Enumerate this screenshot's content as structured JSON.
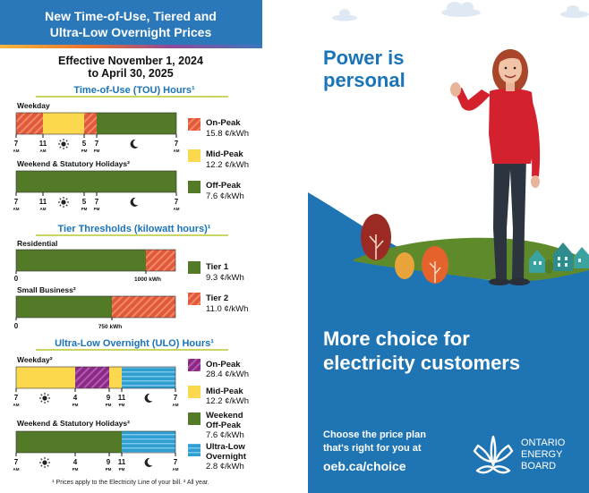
{
  "left": {
    "header_line1": "New Time-of-Use, Tiered and",
    "header_line2": "Ultra-Low Overnight Prices",
    "effective_line1": "Effective November 1, 2024",
    "effective_line2": "to April 30, 2025",
    "tou": {
      "section_title": "Time-of-Use (TOU) Hours¹",
      "weekday_label": "Weekday",
      "weekend_label": "Weekend & Statutory Holidays²",
      "weekday_ticks": [
        {
          "num": "7",
          "sub": "AM"
        },
        {
          "num": "11",
          "sub": "AM"
        },
        {
          "num": "5",
          "sub": "PM"
        },
        {
          "num": "7",
          "sub": "PM"
        },
        {
          "num": "7",
          "sub": "AM"
        }
      ],
      "legend": [
        {
          "name": "On-Peak",
          "price": "15.8 ¢/kWh",
          "color": "#e2593a"
        },
        {
          "name": "Mid-Peak",
          "price": "12.2 ¢/kWh",
          "color": "#fcd84e"
        },
        {
          "name": "Off-Peak",
          "price": "7.6 ¢/kWh",
          "color": "#537a27"
        }
      ]
    },
    "tier": {
      "section_title": "Tier Thresholds (kilowatt hours)¹",
      "residential_label": "Residential",
      "residential_zero": "0",
      "residential_threshold": "1000 kWh",
      "small_business_label": "Small Business²",
      "small_business_zero": "0",
      "small_business_threshold": "750 kWh",
      "tier1_name": "Tier 1",
      "tier1_price": "9.3 ¢/kWh",
      "tier2_name": "Tier 2",
      "tier2_price": "11.0 ¢/kWh"
    },
    "ulo": {
      "section_title": "Ultra-Low Overnight (ULO) Hours¹",
      "weekday_label": "Weekday²",
      "weekend_label": "Weekend & Statutory Holidays²",
      "ticks": [
        {
          "num": "7",
          "sub": "AM"
        },
        {
          "num": "4",
          "sub": "PM"
        },
        {
          "num": "9",
          "sub": "PM"
        },
        {
          "num": "11",
          "sub": "PM"
        },
        {
          "num": "7",
          "sub": "AM"
        }
      ],
      "legend": [
        {
          "line1": "On-Peak",
          "line2": "",
          "price": "28.4 ¢/kWh",
          "color": "#8b2a86"
        },
        {
          "line1": "Mid-Peak",
          "line2": "",
          "price": "12.2 ¢/kWh",
          "color": "#fcd84e"
        },
        {
          "line1": "Weekend",
          "line2": "Off-Peak",
          "price": "7.6 ¢/kWh",
          "color": "#537a27"
        },
        {
          "line1": "Ultra-Low",
          "line2": "Overnight",
          "price": "2.8 ¢/kWh",
          "color": "#2e9fd0"
        }
      ]
    },
    "footnote": "¹ Prices apply to the Electricity Line of your bill. ² All year."
  },
  "right": {
    "headline_line1": "Power is",
    "headline_line2": "personal",
    "main_line1": "More choice for",
    "main_line2": "electricity customers",
    "cta_line1": "Choose the price plan",
    "cta_line2": "that's right for you at",
    "url": "oeb.ca/choice",
    "logo_line1": "ONTARIO",
    "logo_line2": "ENERGY",
    "logo_line3": "BOARD"
  },
  "colors": {
    "header_blue": "#2a78b9",
    "section_blue": "#1a74b8",
    "panel_blue": "#1f75b4",
    "on_peak": "#e2593a",
    "mid_peak": "#fcd84e",
    "off_peak": "#537a27",
    "ulo_on_peak": "#8b2a86",
    "ultra_low": "#2e9fd0"
  },
  "icons": [
    "sun-icon",
    "moon-icon",
    "leaf-logo-icon",
    "cloud-icon",
    "tree-icon",
    "house-icon"
  ]
}
